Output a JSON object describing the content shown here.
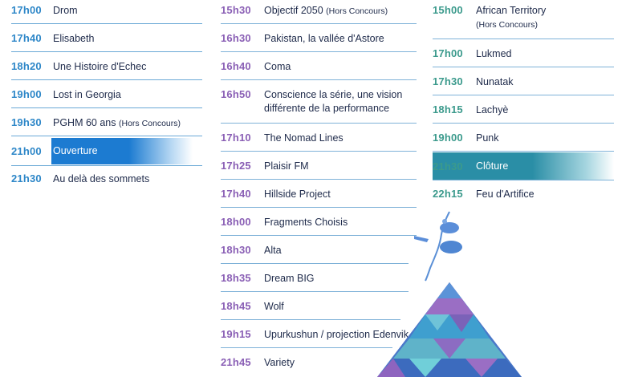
{
  "columns": [
    {
      "id": "left",
      "rows": [
        {
          "time": "17h00",
          "title": "Drom"
        },
        {
          "time": "17h40",
          "title": "Elisabeth"
        },
        {
          "time": "18h20",
          "title": "Une Histoire d'Echec"
        },
        {
          "time": "19h00",
          "title": "Lost in Georgia"
        },
        {
          "time": "19h30",
          "title": "PGHM 60 ans",
          "note": "(Hors Concours)"
        },
        {
          "time": "21h00",
          "title": "Ouverture",
          "highlight": "blue"
        },
        {
          "time": "21h30",
          "title": "Au delà des sommets"
        }
      ]
    },
    {
      "id": "mid",
      "rows": [
        {
          "time": "15h30",
          "title": "Objectif 2050",
          "note": "(Hors Concours)"
        },
        {
          "time": "16h30",
          "title": "Pakistan, la vallée d'Astore"
        },
        {
          "time": "16h40",
          "title": "Coma"
        },
        {
          "time": "16h50",
          "title": "Conscience la série, une vision",
          "title2": "différente de la performance"
        },
        {
          "time": "17h10",
          "title": "The Nomad Lines"
        },
        {
          "time": "17h25",
          "title": "Plaisir FM"
        },
        {
          "time": "17h40",
          "title": "Hillside Project"
        },
        {
          "time": "18h00",
          "title": "Fragments Choisis"
        },
        {
          "time": "18h30",
          "title": "Alta"
        },
        {
          "time": "18h35",
          "title": "Dream BIG"
        },
        {
          "time": "18h45",
          "title": "Wolf"
        },
        {
          "time": "19h15",
          "title": "Upurkushun / projection Edenvik"
        },
        {
          "time": "21h45",
          "title": "Variety"
        }
      ]
    },
    {
      "id": "right",
      "rows": [
        {
          "time": "15h00",
          "title": "African Territory",
          "title2": "(Hors Concours)"
        },
        {
          "time": "17h00",
          "title": "Lukmed"
        },
        {
          "time": "17h30",
          "title": "Nunatak"
        },
        {
          "time": "18h15",
          "title": "Lachyè"
        },
        {
          "time": "19h00",
          "title": "Punk"
        },
        {
          "time": "21h30",
          "title": "Clôture",
          "highlight": "teal"
        },
        {
          "time": "22h15",
          "title": "Feu d'Artifice"
        }
      ]
    }
  ],
  "colors": {
    "left_time": "#2e87c8",
    "mid_time": "#8a5fb5",
    "right_time": "#3b9a8c",
    "title_text": "#1e2a4a",
    "highlight_blue": "#1c7bd1",
    "highlight_teal": "#2a8ea6"
  },
  "decorations": [
    "lake-illustration",
    "mountain-illustration"
  ]
}
